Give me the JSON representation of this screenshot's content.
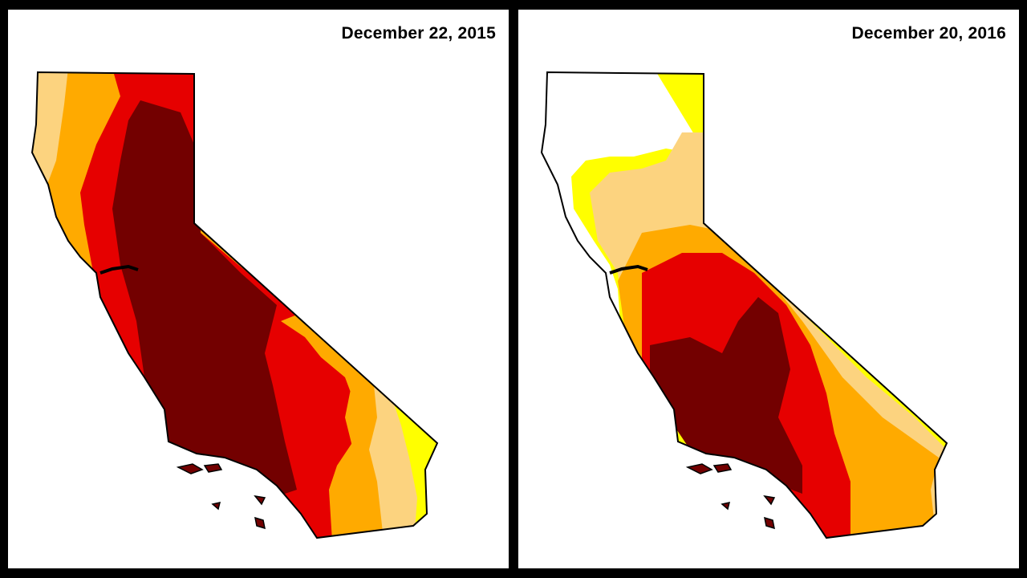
{
  "panels": [
    {
      "title": "December 22, 2015"
    },
    {
      "title": "December 20, 2016"
    }
  ],
  "colors": {
    "background": "#000000",
    "panel": "#ffffff",
    "none": "#ffffff",
    "abnormally_dry": "#ffff00",
    "moderate": "#fcd37f",
    "severe": "#ffaa00",
    "extreme": "#e60000",
    "exceptional": "#730000"
  }
}
